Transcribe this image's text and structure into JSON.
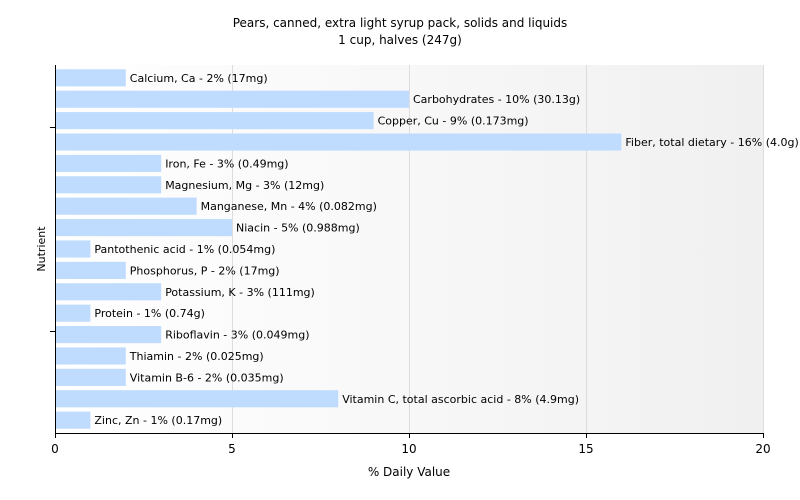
{
  "chart_data": {
    "type": "bar",
    "orientation": "horizontal",
    "title": "Pears, canned, extra light syrup pack, solids and liquids",
    "subtitle": "1 cup, halves (247g)",
    "xlabel": "% Daily Value",
    "ylabel": "Nutrient",
    "xlim": [
      0,
      20
    ],
    "xticks": [
      "0",
      "5",
      "10",
      "15",
      "20"
    ],
    "grid": true,
    "bar_color": "#bfdcff",
    "categories": [
      "Calcium, Ca",
      "Carbohydrates",
      "Copper, Cu",
      "Fiber, total dietary",
      "Iron, Fe",
      "Magnesium, Mg",
      "Manganese, Mn",
      "Niacin",
      "Pantothenic acid",
      "Phosphorus, P",
      "Potassium, K",
      "Protein",
      "Riboflavin",
      "Thiamin",
      "Vitamin B-6",
      "Vitamin C, total ascorbic acid",
      "Zinc, Zn"
    ],
    "values": [
      2,
      10,
      9,
      16,
      3,
      3,
      4,
      5,
      1,
      2,
      3,
      1,
      3,
      2,
      2,
      8,
      1
    ],
    "labels": [
      "Calcium, Ca - 2% (17mg)",
      "Carbohydrates - 10% (30.13g)",
      "Copper, Cu - 9% (0.173mg)",
      "Fiber, total dietary - 16% (4.0g)",
      "Iron, Fe - 3% (0.49mg)",
      "Magnesium, Mg - 3% (12mg)",
      "Manganese, Mn - 4% (0.082mg)",
      "Niacin - 5% (0.988mg)",
      "Pantothenic acid - 1% (0.054mg)",
      "Phosphorus, P - 2% (17mg)",
      "Potassium, K - 3% (111mg)",
      "Protein - 1% (0.74g)",
      "Riboflavin - 3% (0.049mg)",
      "Thiamin - 2% (0.025mg)",
      "Vitamin B-6 - 2% (0.035mg)",
      "Vitamin C, total ascorbic acid - 8% (4.9mg)",
      "Zinc, Zn - 1% (0.17mg)"
    ]
  }
}
